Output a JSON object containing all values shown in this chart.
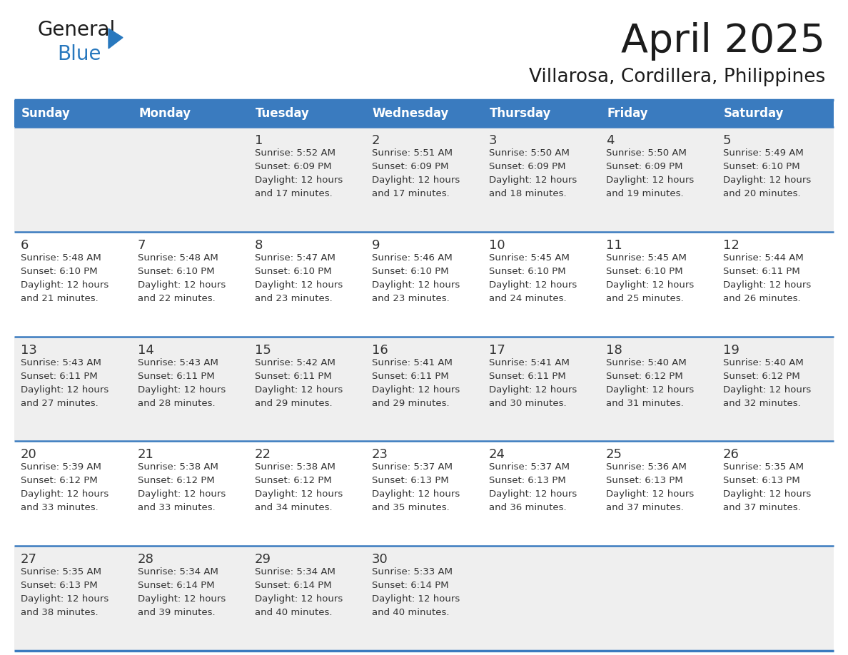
{
  "title": "April 2025",
  "subtitle": "Villarosa, Cordillera, Philippines",
  "header_color": "#3a7bbf",
  "header_text_color": "#ffffff",
  "cell_bg_week1": "#efefef",
  "cell_bg_week2": "#ffffff",
  "cell_bg_week3": "#efefef",
  "cell_bg_week4": "#ffffff",
  "cell_bg_week5": "#efefef",
  "border_color": "#3a7bbf",
  "text_color": "#333333",
  "days_of_week": [
    "Sunday",
    "Monday",
    "Tuesday",
    "Wednesday",
    "Thursday",
    "Friday",
    "Saturday"
  ],
  "weeks": [
    [
      {
        "day": "",
        "info": ""
      },
      {
        "day": "",
        "info": ""
      },
      {
        "day": "1",
        "info": "Sunrise: 5:52 AM\nSunset: 6:09 PM\nDaylight: 12 hours\nand 17 minutes."
      },
      {
        "day": "2",
        "info": "Sunrise: 5:51 AM\nSunset: 6:09 PM\nDaylight: 12 hours\nand 17 minutes."
      },
      {
        "day": "3",
        "info": "Sunrise: 5:50 AM\nSunset: 6:09 PM\nDaylight: 12 hours\nand 18 minutes."
      },
      {
        "day": "4",
        "info": "Sunrise: 5:50 AM\nSunset: 6:09 PM\nDaylight: 12 hours\nand 19 minutes."
      },
      {
        "day": "5",
        "info": "Sunrise: 5:49 AM\nSunset: 6:10 PM\nDaylight: 12 hours\nand 20 minutes."
      }
    ],
    [
      {
        "day": "6",
        "info": "Sunrise: 5:48 AM\nSunset: 6:10 PM\nDaylight: 12 hours\nand 21 minutes."
      },
      {
        "day": "7",
        "info": "Sunrise: 5:48 AM\nSunset: 6:10 PM\nDaylight: 12 hours\nand 22 minutes."
      },
      {
        "day": "8",
        "info": "Sunrise: 5:47 AM\nSunset: 6:10 PM\nDaylight: 12 hours\nand 23 minutes."
      },
      {
        "day": "9",
        "info": "Sunrise: 5:46 AM\nSunset: 6:10 PM\nDaylight: 12 hours\nand 23 minutes."
      },
      {
        "day": "10",
        "info": "Sunrise: 5:45 AM\nSunset: 6:10 PM\nDaylight: 12 hours\nand 24 minutes."
      },
      {
        "day": "11",
        "info": "Sunrise: 5:45 AM\nSunset: 6:10 PM\nDaylight: 12 hours\nand 25 minutes."
      },
      {
        "day": "12",
        "info": "Sunrise: 5:44 AM\nSunset: 6:11 PM\nDaylight: 12 hours\nand 26 minutes."
      }
    ],
    [
      {
        "day": "13",
        "info": "Sunrise: 5:43 AM\nSunset: 6:11 PM\nDaylight: 12 hours\nand 27 minutes."
      },
      {
        "day": "14",
        "info": "Sunrise: 5:43 AM\nSunset: 6:11 PM\nDaylight: 12 hours\nand 28 minutes."
      },
      {
        "day": "15",
        "info": "Sunrise: 5:42 AM\nSunset: 6:11 PM\nDaylight: 12 hours\nand 29 minutes."
      },
      {
        "day": "16",
        "info": "Sunrise: 5:41 AM\nSunset: 6:11 PM\nDaylight: 12 hours\nand 29 minutes."
      },
      {
        "day": "17",
        "info": "Sunrise: 5:41 AM\nSunset: 6:11 PM\nDaylight: 12 hours\nand 30 minutes."
      },
      {
        "day": "18",
        "info": "Sunrise: 5:40 AM\nSunset: 6:12 PM\nDaylight: 12 hours\nand 31 minutes."
      },
      {
        "day": "19",
        "info": "Sunrise: 5:40 AM\nSunset: 6:12 PM\nDaylight: 12 hours\nand 32 minutes."
      }
    ],
    [
      {
        "day": "20",
        "info": "Sunrise: 5:39 AM\nSunset: 6:12 PM\nDaylight: 12 hours\nand 33 minutes."
      },
      {
        "day": "21",
        "info": "Sunrise: 5:38 AM\nSunset: 6:12 PM\nDaylight: 12 hours\nand 33 minutes."
      },
      {
        "day": "22",
        "info": "Sunrise: 5:38 AM\nSunset: 6:12 PM\nDaylight: 12 hours\nand 34 minutes."
      },
      {
        "day": "23",
        "info": "Sunrise: 5:37 AM\nSunset: 6:13 PM\nDaylight: 12 hours\nand 35 minutes."
      },
      {
        "day": "24",
        "info": "Sunrise: 5:37 AM\nSunset: 6:13 PM\nDaylight: 12 hours\nand 36 minutes."
      },
      {
        "day": "25",
        "info": "Sunrise: 5:36 AM\nSunset: 6:13 PM\nDaylight: 12 hours\nand 37 minutes."
      },
      {
        "day": "26",
        "info": "Sunrise: 5:35 AM\nSunset: 6:13 PM\nDaylight: 12 hours\nand 37 minutes."
      }
    ],
    [
      {
        "day": "27",
        "info": "Sunrise: 5:35 AM\nSunset: 6:13 PM\nDaylight: 12 hours\nand 38 minutes."
      },
      {
        "day": "28",
        "info": "Sunrise: 5:34 AM\nSunset: 6:14 PM\nDaylight: 12 hours\nand 39 minutes."
      },
      {
        "day": "29",
        "info": "Sunrise: 5:34 AM\nSunset: 6:14 PM\nDaylight: 12 hours\nand 40 minutes."
      },
      {
        "day": "30",
        "info": "Sunrise: 5:33 AM\nSunset: 6:14 PM\nDaylight: 12 hours\nand 40 minutes."
      },
      {
        "day": "",
        "info": ""
      },
      {
        "day": "",
        "info": ""
      },
      {
        "day": "",
        "info": ""
      }
    ]
  ],
  "figsize": [
    11.88,
    9.18
  ],
  "dpi": 100
}
